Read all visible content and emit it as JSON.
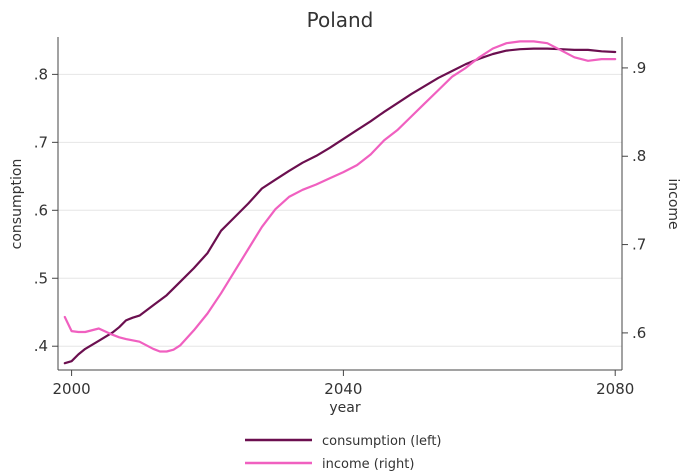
{
  "chart_data": {
    "type": "line",
    "title": "Poland",
    "xlabel": "year",
    "ylabel_left": "consumption",
    "ylabel_right": "income",
    "xlim": [
      1998,
      2081
    ],
    "ylim_left": [
      0.365,
      0.855
    ],
    "ylim_right": [
      0.558,
      0.935
    ],
    "x_ticks": [
      2000,
      2040,
      2080
    ],
    "x_tick_labels": [
      "2000",
      "2040",
      "2080"
    ],
    "y_left_ticks": [
      0.4,
      0.5,
      0.6,
      0.7,
      0.8
    ],
    "y_left_tick_labels": [
      ".4",
      ".5",
      ".6",
      ".7",
      ".8"
    ],
    "y_right_ticks": [
      0.6,
      0.7,
      0.8,
      0.9
    ],
    "y_right_tick_labels": [
      ".6",
      ".7",
      ".8",
      ".9"
    ],
    "grid": true,
    "legend_position": "bottom",
    "series": [
      {
        "name": "consumption (left)",
        "axis": "left",
        "color": "#6b0f4f",
        "x": [
          1999,
          2000,
          2001,
          2002,
          2004,
          2006,
          2007,
          2008,
          2009,
          2010,
          2012,
          2014,
          2016,
          2018,
          2020,
          2022,
          2024,
          2026,
          2028,
          2030,
          2032,
          2034,
          2036,
          2038,
          2040,
          2042,
          2044,
          2046,
          2048,
          2050,
          2052,
          2054,
          2056,
          2058,
          2060,
          2062,
          2064,
          2066,
          2068,
          2070,
          2072,
          2074,
          2076,
          2078,
          2080
        ],
        "y": [
          0.375,
          0.378,
          0.388,
          0.396,
          0.408,
          0.42,
          0.428,
          0.438,
          0.442,
          0.445,
          0.46,
          0.475,
          0.495,
          0.515,
          0.537,
          0.57,
          0.59,
          0.61,
          0.632,
          0.645,
          0.658,
          0.67,
          0.68,
          0.692,
          0.705,
          0.718,
          0.731,
          0.745,
          0.758,
          0.771,
          0.783,
          0.795,
          0.805,
          0.815,
          0.823,
          0.83,
          0.835,
          0.837,
          0.838,
          0.838,
          0.837,
          0.836,
          0.836,
          0.834,
          0.833
        ]
      },
      {
        "name": "income (right)",
        "axis": "right",
        "color": "#f060c0",
        "x": [
          1999,
          2000,
          2001,
          2002,
          2004,
          2006,
          2007,
          2008,
          2010,
          2012,
          2013,
          2014,
          2015,
          2016,
          2018,
          2020,
          2022,
          2024,
          2026,
          2028,
          2030,
          2032,
          2034,
          2036,
          2038,
          2040,
          2042,
          2044,
          2046,
          2048,
          2050,
          2052,
          2054,
          2056,
          2058,
          2060,
          2062,
          2064,
          2066,
          2068,
          2070,
          2072,
          2074,
          2076,
          2078,
          2080
        ],
        "y": [
          0.618,
          0.602,
          0.601,
          0.601,
          0.605,
          0.598,
          0.595,
          0.593,
          0.59,
          0.582,
          0.579,
          0.579,
          0.581,
          0.586,
          0.603,
          0.622,
          0.645,
          0.67,
          0.695,
          0.72,
          0.74,
          0.754,
          0.762,
          0.768,
          0.775,
          0.782,
          0.79,
          0.802,
          0.818,
          0.83,
          0.845,
          0.86,
          0.875,
          0.89,
          0.9,
          0.912,
          0.922,
          0.928,
          0.93,
          0.93,
          0.928,
          0.92,
          0.912,
          0.908,
          0.91,
          0.91
        ]
      }
    ]
  }
}
